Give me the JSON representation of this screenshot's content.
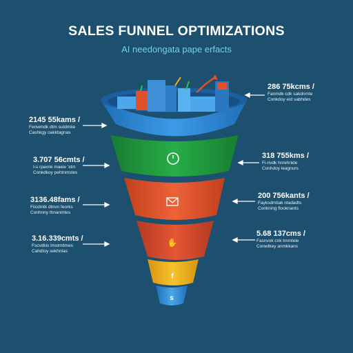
{
  "title": "SALES FUNNEL OPTIMIZATIONS",
  "subtitle": "AI needongata pape erfacts",
  "colors": {
    "background": "#1d4f6e",
    "stage_1": "#2a83d4",
    "stage_2": "#1f9a3c",
    "stage_3": "#e0502a",
    "stage_4": "#d9482b",
    "stage_5": "#f1b21a",
    "stage_6": "#2f8fd8",
    "subtitle": "#6fd3ee"
  },
  "stages": [
    {
      "name": "stage-1",
      "icon": "city-buildings-icon"
    },
    {
      "name": "stage-2",
      "icon": "clock-icon"
    },
    {
      "name": "stage-3",
      "icon": "envelope-icon"
    },
    {
      "name": "stage-4",
      "icon": "thumbs-icon"
    },
    {
      "name": "stage-5",
      "icon": "facebook-icon",
      "label": "f"
    },
    {
      "name": "stage-6",
      "icon": "dollar-icon",
      "label": "s"
    }
  ],
  "callouts_left": [
    {
      "value": "2145 55kams /",
      "line1": "Fenwmdk dtm sutdmke",
      "line2": "Cashkgy oakktagnas"
    },
    {
      "value": "3.707 56cmts /",
      "line1": "I-s rpaxnk maeie 'xtm",
      "line2": "Conkdkoy pehtnmstes"
    },
    {
      "value": "3136.48fams /",
      "line1": "Fiicdmtk dtmm feorks",
      "line2": "Conhnny thnanmtes"
    },
    {
      "value": "3.16.339cmts /",
      "line1": "Fscvdkis lmstmtlmes",
      "line2": "Cahdtoy sekhntas"
    }
  ],
  "callouts_right": [
    {
      "value": "286 75kcms /",
      "line1": "Fanmdk cdk sakdnmte",
      "line2": "Conkdoy eid sabhdes"
    },
    {
      "value": "318 755kms /",
      "line1": "Fi-nvdk hn/ehnkle",
      "line2": "Conhdoy leagnurs"
    },
    {
      "value": "200 756kants /",
      "line1": "Fayksdmtiak ntadadts",
      "line2": "Conkning flooknants"
    },
    {
      "value": "5.68 137cms /",
      "line1": "Fasnvok cnk tmmtele",
      "line2": "Conwtkey anmkkans"
    }
  ]
}
